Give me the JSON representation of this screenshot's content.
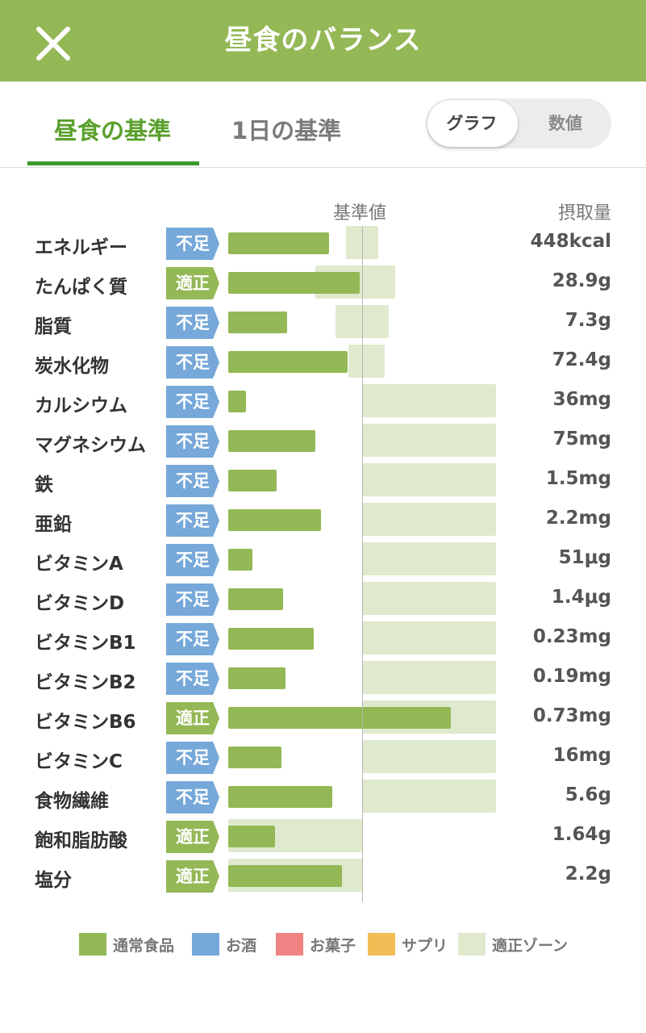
{
  "header": {
    "title": "昼食のバランス",
    "close_icon": "close-icon"
  },
  "tabs": [
    {
      "label": "昼食の基準",
      "active": true
    },
    {
      "label": "1日の基準",
      "active": false
    }
  ],
  "view_toggle": {
    "options": [
      "グラフ",
      "数値"
    ],
    "selected": "グラフ"
  },
  "columns": {
    "baseline": "基準値",
    "intake": "摂取量"
  },
  "colors": {
    "regular_food": "#93b855",
    "alcohol": "#76a8d9",
    "snacks": "#ef8282",
    "supplement": "#f2bd55",
    "proper_zone": "#dfe9ce",
    "badge_low": "#76a8d9",
    "badge_ok": "#93b855",
    "header": "#93b855",
    "active_tab": "#5aa02c"
  },
  "nutrients": [
    {
      "name": "エネルギー",
      "status": "不足",
      "intake": "448kcal",
      "ratio": 0.75,
      "zone": [
        0.88,
        1.12
      ]
    },
    {
      "name": "たんぱく質",
      "status": "適正",
      "intake": "28.9g",
      "ratio": 0.98,
      "zone": [
        0.65,
        1.25
      ]
    },
    {
      "name": "脂質",
      "status": "不足",
      "intake": "7.3g",
      "ratio": 0.44,
      "zone": [
        0.8,
        1.2
      ]
    },
    {
      "name": "炭水化物",
      "status": "不足",
      "intake": "72.4g",
      "ratio": 0.89,
      "zone": [
        0.9,
        1.17
      ]
    },
    {
      "name": "カルシウム",
      "status": "不足",
      "intake": "36mg",
      "ratio": 0.13,
      "zone": [
        1.0,
        2.0
      ]
    },
    {
      "name": "マグネシウム",
      "status": "不足",
      "intake": "75mg",
      "ratio": 0.65,
      "zone": [
        1.0,
        2.0
      ]
    },
    {
      "name": "鉄",
      "status": "不足",
      "intake": "1.5mg",
      "ratio": 0.36,
      "zone": [
        1.0,
        2.0
      ]
    },
    {
      "name": "亜鉛",
      "status": "不足",
      "intake": "2.2mg",
      "ratio": 0.69,
      "zone": [
        1.0,
        2.0
      ]
    },
    {
      "name": "ビタミンA",
      "status": "不足",
      "intake": "51μg",
      "ratio": 0.18,
      "zone": [
        1.0,
        2.0
      ]
    },
    {
      "name": "ビタミンD",
      "status": "不足",
      "intake": "1.4μg",
      "ratio": 0.41,
      "zone": [
        1.0,
        2.0
      ]
    },
    {
      "name": "ビタミンB1",
      "status": "不足",
      "intake": "0.23mg",
      "ratio": 0.64,
      "zone": [
        1.0,
        2.0
      ]
    },
    {
      "name": "ビタミンB2",
      "status": "不足",
      "intake": "0.19mg",
      "ratio": 0.43,
      "zone": [
        1.0,
        2.0
      ]
    },
    {
      "name": "ビタミンB6",
      "status": "適正",
      "intake": "0.73mg",
      "ratio": 1.66,
      "zone": [
        1.0,
        2.0
      ]
    },
    {
      "name": "ビタミンC",
      "status": "不足",
      "intake": "16mg",
      "ratio": 0.4,
      "zone": [
        1.0,
        2.0
      ]
    },
    {
      "name": "食物繊維",
      "status": "不足",
      "intake": "5.6g",
      "ratio": 0.78,
      "zone": [
        1.0,
        2.0
      ]
    },
    {
      "name": "飽和脂肪酸",
      "status": "適正",
      "intake": "1.64g",
      "ratio": 0.35,
      "zone": [
        0.0,
        1.0
      ]
    },
    {
      "name": "塩分",
      "status": "適正",
      "intake": "2.2g",
      "ratio": 0.85,
      "zone": [
        0.0,
        1.0
      ]
    }
  ],
  "legend": [
    {
      "label": "通常食品",
      "color": "#93b855"
    },
    {
      "label": "お酒",
      "color": "#76a8d9"
    },
    {
      "label": "お菓子",
      "color": "#ef8282"
    },
    {
      "label": "サプリ",
      "color": "#f2bd55"
    },
    {
      "label": "適正ゾーン",
      "color": "#dfe9ce"
    }
  ]
}
